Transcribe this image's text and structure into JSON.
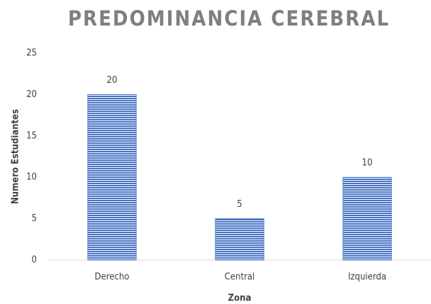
{
  "chart_data": {
    "type": "bar",
    "title": "PREDOMINANCIA CEREBRAL",
    "x_label": "Zona",
    "y_label": "Numero Estudiantes",
    "categories": [
      "Derecho",
      "Central",
      "Izquierda"
    ],
    "values": [
      20,
      5,
      10
    ],
    "color": "#4472c4",
    "ylim": [
      0,
      25
    ],
    "yticks": [
      0,
      5,
      10,
      15,
      20,
      25
    ],
    "grid": false,
    "data_labels": true
  }
}
